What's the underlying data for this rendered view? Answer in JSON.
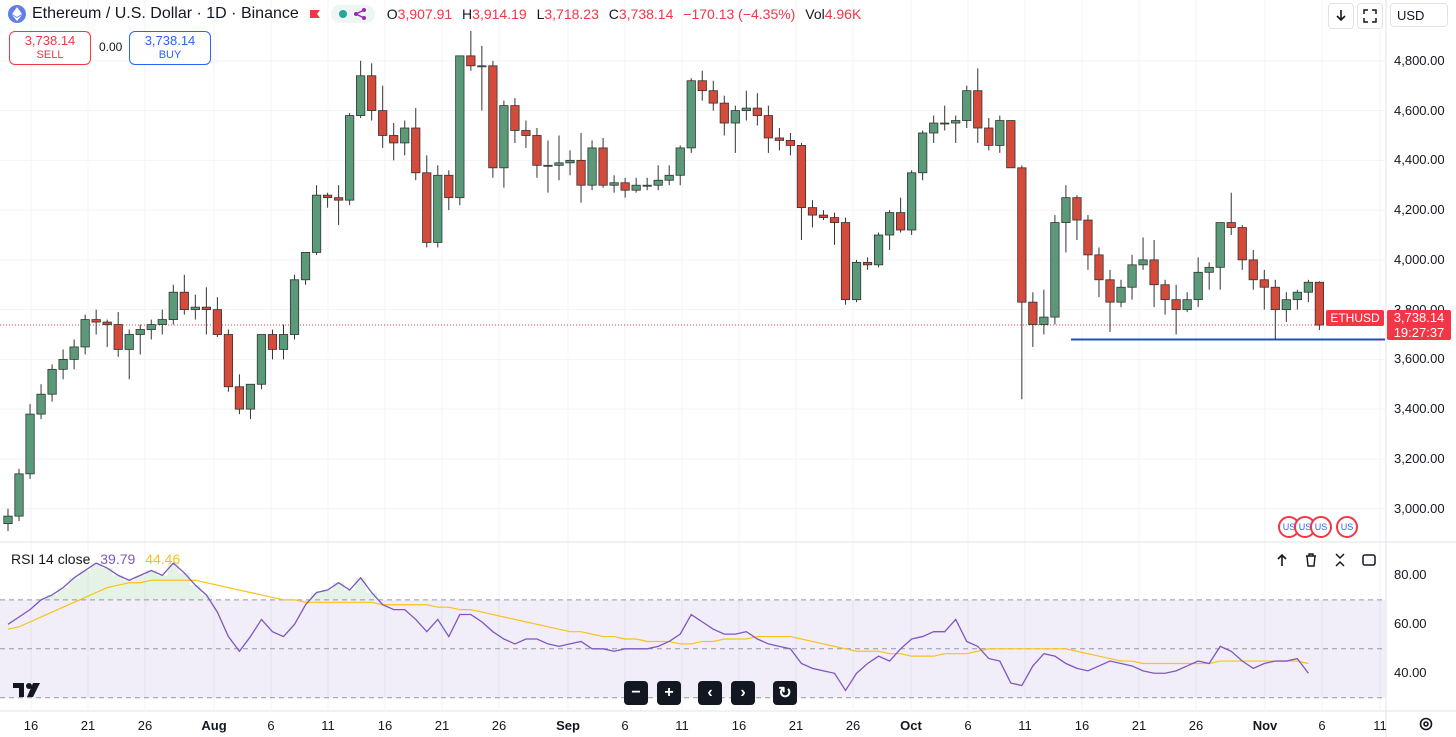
{
  "header": {
    "symbol_title": "Ethereum / U.S. Dollar · 1D · Binance",
    "ohlc": {
      "o_label": "O",
      "o": "3,907.91",
      "h_label": "H",
      "h": "3,914.19",
      "l_label": "L",
      "l": "3,718.23",
      "c_label": "C",
      "c": "3,738.14",
      "change": "−170.13 (−4.35%)",
      "vol_label": "Vol",
      "vol": "4.96K"
    },
    "currency": "USD"
  },
  "trade": {
    "sell_price": "3,738.14",
    "sell_label": "SELL",
    "spread": "0.00",
    "buy_price": "3,738.14",
    "buy_label": "BUY"
  },
  "price_axis": [
    "4,800.00",
    "4,600.00",
    "4,400.00",
    "4,200.00",
    "4,000.00",
    "3,800.00",
    "3,600.00",
    "3,400.00",
    "3,200.00",
    "3,000.00"
  ],
  "rsi_axis": [
    "80.00",
    "60.00",
    "40.00"
  ],
  "time_axis": [
    {
      "label": "16",
      "bold": false
    },
    {
      "label": "21",
      "bold": false
    },
    {
      "label": "26",
      "bold": false
    },
    {
      "label": "Aug",
      "bold": true
    },
    {
      "label": "6",
      "bold": false
    },
    {
      "label": "11",
      "bold": false
    },
    {
      "label": "16",
      "bold": false
    },
    {
      "label": "21",
      "bold": false
    },
    {
      "label": "26",
      "bold": false
    },
    {
      "label": "Sep",
      "bold": true
    },
    {
      "label": "6",
      "bold": false
    },
    {
      "label": "11",
      "bold": false
    },
    {
      "label": "16",
      "bold": false
    },
    {
      "label": "21",
      "bold": false
    },
    {
      "label": "26",
      "bold": false
    },
    {
      "label": "Oct",
      "bold": true
    },
    {
      "label": "6",
      "bold": false
    },
    {
      "label": "11",
      "bold": false
    },
    {
      "label": "16",
      "bold": false
    },
    {
      "label": "21",
      "bold": false
    },
    {
      "label": "26",
      "bold": false
    },
    {
      "label": "Nov",
      "bold": true
    },
    {
      "label": "6",
      "bold": false
    },
    {
      "label": "11",
      "bold": false
    }
  ],
  "last_price": {
    "symbol": "ETHUSD",
    "price": "3,738.14",
    "countdown": "19:27:37"
  },
  "rsi": {
    "label": "RSI 14 close",
    "value": "39.79",
    "ma_value": "44.46"
  },
  "colors": {
    "up": "#26a69a",
    "down": "#f23645",
    "candle_up": "#5b9a78",
    "candle_down": "#d44b3b",
    "rsi": "#7e57c2",
    "rsi_ma": "#f7c31a",
    "hline": "#1e53b6"
  },
  "icons": {
    "download": "download-icon",
    "fullscreen": "fullscreen-icon",
    "up": "arrow-up-icon",
    "trash": "trash-icon",
    "collapse": "collapse-icon",
    "zoom_out": "minus-icon",
    "zoom_in": "plus-icon",
    "left": "chevron-left-icon",
    "right": "chevron-right-icon",
    "reset": "reset-icon",
    "settings": "gear-icon"
  },
  "nav": {
    "zoom_out": "−",
    "zoom_in": "+",
    "left": "‹",
    "right": "›",
    "reset": "↻"
  },
  "chart_data": {
    "type": "candlestick",
    "candles": [
      [
        2940,
        3000,
        2910,
        2970
      ],
      [
        2970,
        3160,
        2950,
        3140
      ],
      [
        3140,
        3420,
        3120,
        3380
      ],
      [
        3380,
        3500,
        3360,
        3460
      ],
      [
        3460,
        3580,
        3430,
        3560
      ],
      [
        3560,
        3640,
        3520,
        3600
      ],
      [
        3600,
        3680,
        3560,
        3650
      ],
      [
        3650,
        3780,
        3620,
        3760
      ],
      [
        3760,
        3800,
        3700,
        3750
      ],
      [
        3750,
        3760,
        3650,
        3740
      ],
      [
        3740,
        3790,
        3610,
        3640
      ],
      [
        3640,
        3720,
        3520,
        3700
      ],
      [
        3700,
        3740,
        3620,
        3720
      ],
      [
        3720,
        3760,
        3680,
        3740
      ],
      [
        3740,
        3800,
        3700,
        3760
      ],
      [
        3760,
        3900,
        3740,
        3870
      ],
      [
        3870,
        3940,
        3780,
        3800
      ],
      [
        3800,
        3860,
        3760,
        3810
      ],
      [
        3810,
        3890,
        3700,
        3800
      ],
      [
        3800,
        3850,
        3690,
        3700
      ],
      [
        3700,
        3720,
        3470,
        3490
      ],
      [
        3490,
        3540,
        3380,
        3400
      ],
      [
        3400,
        3500,
        3360,
        3500
      ],
      [
        3500,
        3700,
        3480,
        3700
      ],
      [
        3700,
        3720,
        3600,
        3640
      ],
      [
        3640,
        3740,
        3600,
        3700
      ],
      [
        3700,
        3940,
        3680,
        3920
      ],
      [
        3920,
        4030,
        3900,
        4030
      ],
      [
        4030,
        4300,
        4020,
        4260
      ],
      [
        4260,
        4270,
        4210,
        4250
      ],
      [
        4250,
        4300,
        4140,
        4240
      ],
      [
        4240,
        4590,
        4220,
        4580
      ],
      [
        4580,
        4800,
        4570,
        4740
      ],
      [
        4740,
        4790,
        4560,
        4600
      ],
      [
        4600,
        4700,
        4450,
        4500
      ],
      [
        4500,
        4550,
        4400,
        4470
      ],
      [
        4470,
        4560,
        4420,
        4530
      ],
      [
        4530,
        4610,
        4320,
        4350
      ],
      [
        4350,
        4420,
        4050,
        4070
      ],
      [
        4070,
        4380,
        4050,
        4340
      ],
      [
        4340,
        4360,
        4200,
        4250
      ],
      [
        4250,
        4820,
        4220,
        4820
      ],
      [
        4820,
        4920,
        4760,
        4780
      ],
      [
        4780,
        4860,
        4600,
        4780
      ],
      [
        4780,
        4800,
        4330,
        4370
      ],
      [
        4370,
        4640,
        4290,
        4620
      ],
      [
        4620,
        4650,
        4470,
        4520
      ],
      [
        4520,
        4560,
        4450,
        4500
      ],
      [
        4500,
        4530,
        4330,
        4380
      ],
      [
        4380,
        4480,
        4270,
        4380
      ],
      [
        4380,
        4500,
        4320,
        4390
      ],
      [
        4390,
        4440,
        4340,
        4400
      ],
      [
        4400,
        4510,
        4230,
        4300
      ],
      [
        4300,
        4480,
        4280,
        4450
      ],
      [
        4450,
        4490,
        4290,
        4300
      ],
      [
        4300,
        4340,
        4270,
        4310
      ],
      [
        4310,
        4330,
        4250,
        4280
      ],
      [
        4280,
        4330,
        4270,
        4300
      ],
      [
        4300,
        4330,
        4280,
        4300
      ],
      [
        4300,
        4380,
        4280,
        4320
      ],
      [
        4320,
        4380,
        4300,
        4340
      ],
      [
        4340,
        4460,
        4300,
        4450
      ],
      [
        4450,
        4730,
        4430,
        4720
      ],
      [
        4720,
        4760,
        4640,
        4680
      ],
      [
        4680,
        4720,
        4600,
        4630
      ],
      [
        4630,
        4660,
        4500,
        4550
      ],
      [
        4550,
        4620,
        4430,
        4600
      ],
      [
        4600,
        4680,
        4560,
        4610
      ],
      [
        4610,
        4670,
        4540,
        4580
      ],
      [
        4580,
        4620,
        4430,
        4490
      ],
      [
        4490,
        4530,
        4440,
        4480
      ],
      [
        4480,
        4510,
        4420,
        4460
      ],
      [
        4460,
        4470,
        4080,
        4210
      ],
      [
        4210,
        4240,
        4130,
        4180
      ],
      [
        4180,
        4200,
        4160,
        4170
      ],
      [
        4170,
        4190,
        4060,
        4150
      ],
      [
        4150,
        4170,
        3820,
        3840
      ],
      [
        3840,
        4000,
        3830,
        3990
      ],
      [
        3990,
        4010,
        3960,
        3980
      ],
      [
        3980,
        4110,
        3970,
        4100
      ],
      [
        4100,
        4200,
        4040,
        4190
      ],
      [
        4190,
        4250,
        4110,
        4120
      ],
      [
        4120,
        4360,
        4100,
        4350
      ],
      [
        4350,
        4520,
        4320,
        4510
      ],
      [
        4510,
        4580,
        4470,
        4550
      ],
      [
        4550,
        4620,
        4520,
        4550
      ],
      [
        4550,
        4580,
        4470,
        4560
      ],
      [
        4560,
        4700,
        4530,
        4680
      ],
      [
        4680,
        4770,
        4470,
        4530
      ],
      [
        4530,
        4570,
        4440,
        4460
      ],
      [
        4460,
        4580,
        4430,
        4560
      ],
      [
        4560,
        4560,
        4370,
        4370
      ],
      [
        4370,
        4380,
        3440,
        3830
      ],
      [
        3830,
        3870,
        3650,
        3740
      ],
      [
        3740,
        3880,
        3700,
        3770
      ],
      [
        3770,
        4180,
        3740,
        4150
      ],
      [
        4150,
        4300,
        4030,
        4250
      ],
      [
        4250,
        4260,
        4080,
        4160
      ],
      [
        4160,
        4180,
        3960,
        4020
      ],
      [
        4020,
        4050,
        3850,
        3920
      ],
      [
        3920,
        3960,
        3710,
        3830
      ],
      [
        3830,
        3920,
        3810,
        3890
      ],
      [
        3890,
        4020,
        3840,
        3980
      ],
      [
        3980,
        4090,
        3960,
        4000
      ],
      [
        4000,
        4080,
        3810,
        3900
      ],
      [
        3900,
        3920,
        3780,
        3840
      ],
      [
        3840,
        3900,
        3700,
        3800
      ],
      [
        3800,
        3870,
        3790,
        3840
      ],
      [
        3840,
        4010,
        3810,
        3950
      ],
      [
        3950,
        3990,
        3880,
        3970
      ],
      [
        3970,
        4130,
        3880,
        4150
      ],
      [
        4150,
        4270,
        4100,
        4130
      ],
      [
        4130,
        4140,
        3960,
        4000
      ],
      [
        4000,
        4040,
        3880,
        3920
      ],
      [
        3920,
        3960,
        3800,
        3890
      ],
      [
        3890,
        3920,
        3680,
        3800
      ],
      [
        3800,
        3870,
        3750,
        3840
      ],
      [
        3840,
        3880,
        3800,
        3870
      ],
      [
        3870,
        3920,
        3830,
        3910
      ],
      [
        3910,
        3914,
        3718,
        3738
      ]
    ],
    "price_range": [
      2870,
      4940
    ],
    "horizontal_level": 3680,
    "rsi_values": [
      60,
      63,
      66,
      70,
      72,
      75,
      79,
      82,
      85,
      83,
      80,
      78,
      80,
      82,
      80,
      85,
      81,
      76,
      72,
      65,
      55,
      49,
      55,
      62,
      57,
      55,
      60,
      68,
      73,
      74,
      77,
      74,
      79,
      73,
      68,
      66,
      66,
      62,
      57,
      62,
      55,
      64,
      64,
      61,
      57,
      54,
      52,
      54,
      54,
      52,
      51,
      52,
      53,
      50,
      50,
      49,
      50,
      50,
      50,
      51,
      53,
      56,
      64,
      61,
      58,
      56,
      56,
      57,
      54,
      52,
      51,
      50,
      44,
      42,
      41,
      40,
      33,
      40,
      44,
      47,
      45,
      50,
      54,
      55,
      57,
      57,
      62,
      53,
      51,
      46,
      45,
      36,
      35,
      43,
      48,
      47,
      44,
      42,
      41,
      43,
      45,
      44,
      43,
      41,
      40,
      40,
      41,
      43,
      45,
      44,
      51,
      49,
      45,
      42,
      44,
      45,
      45,
      46,
      40
    ],
    "rsi_ma_values": [
      58,
      59,
      61,
      63,
      65,
      67,
      69,
      71,
      73,
      75,
      76,
      77,
      77,
      78,
      78,
      78,
      78,
      78,
      77,
      76,
      75,
      74,
      73,
      72,
      71,
      70,
      70,
      69,
      69,
      69,
      69,
      69,
      69,
      69,
      68,
      68,
      68,
      68,
      68,
      67,
      67,
      66,
      66,
      65,
      64,
      63,
      62,
      61,
      60,
      59,
      58,
      57,
      57,
      56,
      55,
      55,
      54,
      54,
      53,
      53,
      53,
      52,
      52,
      53,
      53,
      54,
      54,
      54,
      55,
      55,
      55,
      55,
      54,
      53,
      52,
      51,
      50,
      49,
      49,
      49,
      48,
      48,
      47,
      47,
      47,
      48,
      48,
      48,
      49,
      50,
      50,
      50,
      50,
      50,
      50,
      50,
      50,
      49,
      48,
      47,
      46,
      45,
      45,
      44,
      44,
      44,
      44,
      44,
      44,
      44,
      45,
      45,
      45,
      45,
      45,
      45,
      45,
      45,
      44
    ],
    "rsi_range": [
      25,
      92
    ],
    "rsi_levels": [
      70,
      50,
      30
    ]
  }
}
